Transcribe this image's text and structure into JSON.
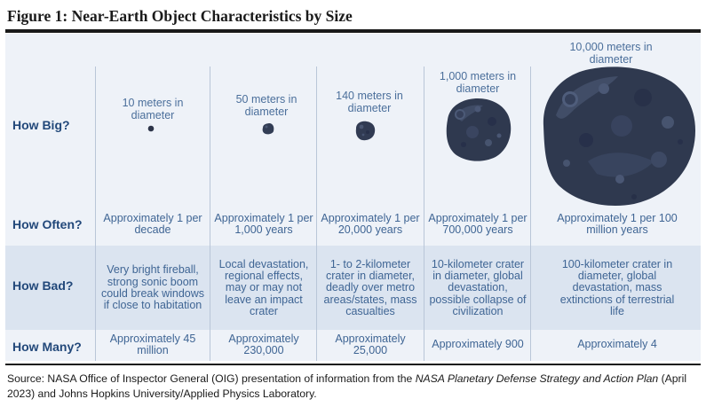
{
  "figure_title": "Figure 1: Near-Earth Object Characteristics by Size",
  "row_labels": {
    "big": "How Big?",
    "often": "How Often?",
    "bad": "How Bad?",
    "many": "How Many?"
  },
  "columns": [
    {
      "size_label": "10 meters in diameter",
      "how_often": "Approximately 1 per decade",
      "how_bad": "Very bright fireball, strong sonic boom could break windows if close to habitation",
      "how_many": "Approximately 45 million"
    },
    {
      "size_label": "50 meters in diameter",
      "how_often": "Approximately 1 per 1,000 years",
      "how_bad": "Local devastation, regional effects, may or may not leave an impact crater",
      "how_many": "Approximately 230,000"
    },
    {
      "size_label": "140 meters in diameter",
      "how_often": "Approximately 1 per 20,000 years",
      "how_bad": "1- to 2-kilometer crater in diameter, deadly over metro areas/states, mass casualties",
      "how_many": "Approximately 25,000"
    },
    {
      "size_label": "1,000 meters in diameter",
      "how_often": "Approximately 1 per 700,000 years",
      "how_bad": "10-kilometer crater in diameter, global devastation, possible collapse of civilization",
      "how_many": "Approximately 900"
    },
    {
      "size_label": "10,000 meters in diameter",
      "how_often": "Approximately 1 per 100 million years",
      "how_bad": "100-kilometer crater in diameter, global devastation, mass extinctions of terrestrial life",
      "how_many": "Approximately 4"
    }
  ],
  "source": {
    "prefix": "Source: NASA Office of Inspector General (OIG) presentation of information from the ",
    "italic": "NASA Planetary Defense Strategy and Action Plan",
    "suffix": " (April 2023) and Johns Hopkins University/Applied Physics Laboratory."
  },
  "icons": [
    "asteroid-10m-icon",
    "asteroid-50m-icon",
    "asteroid-140m-icon",
    "asteroid-1000m-icon",
    "asteroid-10000m-icon"
  ],
  "colors": {
    "row_label": "#22487a",
    "cell_text": "#3f6594",
    "panel": "#eef2f8",
    "band": "#dbe4f0",
    "asteroid": "#2f3b52"
  }
}
